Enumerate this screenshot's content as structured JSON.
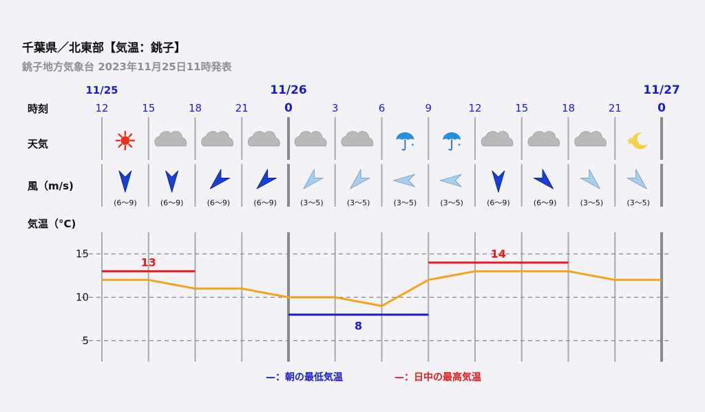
{
  "header": {
    "title": "千葉県／北東部【気温：銚子】",
    "subtitle": "銚子地方気象台 2023年11月25日11時発表"
  },
  "row_labels": {
    "time": "時刻",
    "weather": "天気",
    "wind": "風（m/s)",
    "temperature": "気温（°C)"
  },
  "colors": {
    "low": "#1a1ad4",
    "high": "#e8191c",
    "line": "#f4a41c",
    "wind_strong": "#1a3fd4",
    "wind_weak": "#a7cff0",
    "grid": "#888888"
  },
  "legend": {
    "low": "—：朝の最低気温",
    "high": "—：日中の最高気温"
  },
  "chart_data": {
    "type": "line",
    "x": [
      "12",
      "15",
      "18",
      "21",
      "0",
      "3",
      "6",
      "9",
      "12",
      "15",
      "18",
      "21",
      "0"
    ],
    "date_labels": [
      {
        "index": 0,
        "text": "11/25"
      },
      {
        "index": 4,
        "text": "11/26"
      },
      {
        "index": 12,
        "text": "11/27"
      }
    ],
    "ylabel": "気温（°C)",
    "yticks": [
      5,
      10,
      15
    ],
    "ylim": [
      2.5,
      17.5
    ],
    "grid": true,
    "series": [
      {
        "values": [
          12,
          12,
          11,
          11,
          10,
          10,
          9,
          12,
          13,
          13,
          13,
          12,
          12
        ]
      }
    ],
    "min_temp": {
      "value": 8,
      "label": "8",
      "from_index": 4,
      "to_index": 7
    },
    "max_temps": [
      {
        "value": 13,
        "label": "13",
        "from_index": 0,
        "to_index": 2
      },
      {
        "value": 14,
        "label": "14",
        "from_index": 7,
        "to_index": 10
      }
    ],
    "weather": [
      "sunny-icon",
      "cloudy-icon",
      "cloudy-icon",
      "cloudy-icon",
      "cloudy-icon",
      "cloudy-icon",
      "rain-umbrella-icon",
      "rain-umbrella-icon",
      "cloudy-icon",
      "cloudy-icon",
      "cloudy-icon",
      "clear-night-icon"
    ],
    "wind": [
      {
        "direction": "N",
        "range": "(6〜9)",
        "strong": true
      },
      {
        "direction": "N",
        "range": "(6〜9)",
        "strong": true
      },
      {
        "direction": "NE",
        "range": "(6〜9)",
        "strong": true
      },
      {
        "direction": "NE",
        "range": "(6〜9)",
        "strong": true
      },
      {
        "direction": "NE",
        "range": "(3〜5)",
        "strong": false
      },
      {
        "direction": "NE",
        "range": "(3〜5)",
        "strong": false
      },
      {
        "direction": "E",
        "range": "(3〜5)",
        "strong": false
      },
      {
        "direction": "E",
        "range": "(3〜5)",
        "strong": false
      },
      {
        "direction": "N",
        "range": "(6〜9)",
        "strong": true
      },
      {
        "direction": "NW",
        "range": "(6〜9)",
        "strong": true
      },
      {
        "direction": "NW",
        "range": "(3〜5)",
        "strong": false
      },
      {
        "direction": "NW",
        "range": "(3〜5)",
        "strong": false
      }
    ]
  }
}
